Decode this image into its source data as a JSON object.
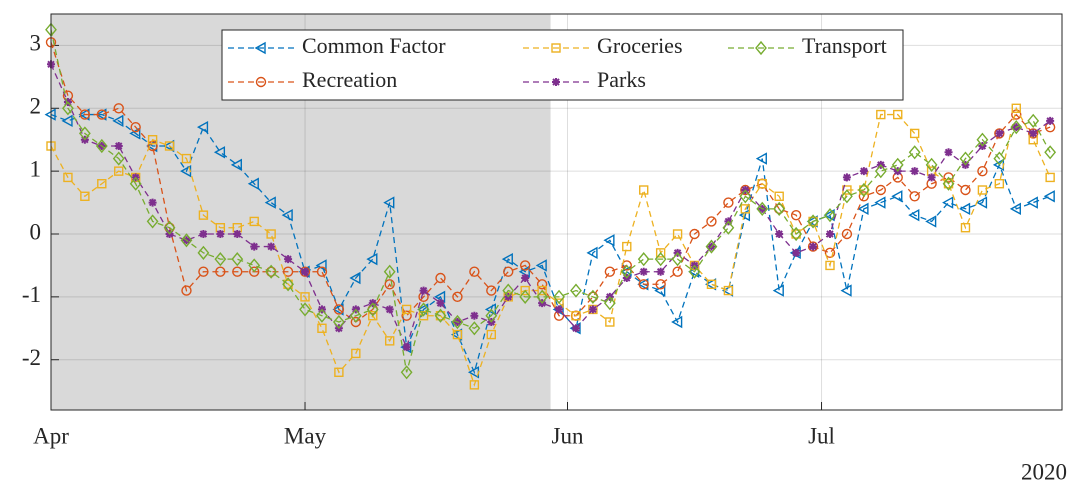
{
  "chart_data": {
    "type": "line",
    "xlabel": "2020",
    "x": [
      0,
      2,
      4,
      6,
      8,
      10,
      12,
      14,
      16,
      18,
      20,
      22,
      24,
      26,
      28,
      30,
      32,
      34,
      36,
      38,
      40,
      42,
      44,
      46,
      48,
      50,
      52,
      54,
      56,
      58,
      60,
      62,
      64,
      66,
      68,
      70,
      72,
      74,
      76,
      78,
      80,
      82,
      84,
      86,
      88,
      90,
      92,
      94,
      96,
      98,
      100,
      102,
      104,
      106,
      108,
      110,
      112,
      114,
      116,
      118
    ],
    "xlim": [
      0,
      119.4
    ],
    "xticks": [
      {
        "value": 0,
        "label": "Apr"
      },
      {
        "value": 30,
        "label": "May"
      },
      {
        "value": 61,
        "label": "Jun"
      },
      {
        "value": 91,
        "label": "Jul"
      }
    ],
    "ylim": [
      -2.8,
      3.5
    ],
    "yticks": [
      -2,
      -1,
      0,
      1,
      2,
      3
    ],
    "grid": true,
    "shaded_xlim": [
      0,
      59
    ],
    "series": [
      {
        "name": "Common Factor",
        "color": "#0072BD",
        "marker": "triangle-left",
        "values": [
          1.9,
          1.8,
          1.9,
          1.9,
          1.8,
          1.6,
          1.4,
          1.4,
          1.0,
          1.7,
          1.3,
          1.1,
          0.8,
          0.5,
          0.3,
          -0.6,
          -0.5,
          -1.2,
          -0.7,
          -0.4,
          0.5,
          -1.8,
          -1.2,
          -1.0,
          -1.6,
          -2.2,
          -1.2,
          -0.4,
          -0.6,
          -0.5,
          -1.2,
          -1.5,
          -0.3,
          -0.1,
          -0.6,
          -0.8,
          -0.9,
          -1.4,
          -0.6,
          -0.8,
          -0.9,
          0.3,
          1.2,
          -0.9,
          -0.3,
          0.2,
          0.3,
          -0.9,
          0.4,
          0.5,
          0.6,
          0.3,
          0.2,
          0.5,
          0.4,
          0.5,
          1.1,
          0.4,
          0.5,
          0.6
        ]
      },
      {
        "name": "Recreation",
        "color": "#D95319",
        "marker": "circle",
        "values": [
          3.05,
          2.2,
          1.9,
          1.9,
          2.0,
          1.7,
          1.4,
          0.1,
          -0.9,
          -0.6,
          -0.6,
          -0.6,
          -0.6,
          -0.6,
          -0.6,
          -0.6,
          -0.6,
          -1.2,
          -1.4,
          -1.2,
          -0.8,
          -1.3,
          -1.0,
          -0.7,
          -1.0,
          -0.6,
          -0.9,
          -0.6,
          -0.5,
          -0.8,
          -1.3,
          -1.3,
          -1.0,
          -0.6,
          -0.5,
          -0.8,
          -0.8,
          -0.6,
          0.0,
          0.2,
          0.5,
          0.7,
          0.8,
          0.4,
          0.3,
          -0.2,
          -0.3,
          0.0,
          0.6,
          0.7,
          0.9,
          0.6,
          0.8,
          0.9,
          0.7,
          1.0,
          1.6,
          1.9,
          1.6,
          1.7
        ]
      },
      {
        "name": "Groceries",
        "color": "#EDB120",
        "marker": "square",
        "values": [
          1.4,
          0.9,
          0.6,
          0.8,
          1.0,
          0.9,
          1.5,
          1.4,
          1.2,
          0.3,
          0.1,
          0.1,
          0.2,
          0.0,
          -0.8,
          -1.0,
          -1.5,
          -2.2,
          -1.9,
          -1.3,
          -1.7,
          -1.2,
          -1.3,
          -1.3,
          -1.6,
          -2.4,
          -1.6,
          -1.0,
          -0.9,
          -0.9,
          -1.1,
          -1.3,
          -1.2,
          -1.4,
          -0.2,
          0.7,
          -0.3,
          0.0,
          -0.5,
          -0.8,
          -0.9,
          0.4,
          0.8,
          0.6,
          0.0,
          0.2,
          -0.5,
          0.7,
          0.7,
          1.9,
          1.9,
          1.6,
          1.0,
          0.8,
          0.1,
          0.7,
          0.8,
          2.0,
          1.5,
          0.9
        ]
      },
      {
        "name": "Parks",
        "color": "#7E2F8E",
        "marker": "asterisk",
        "values": [
          2.7,
          2.1,
          1.5,
          1.4,
          1.4,
          0.9,
          0.5,
          0.0,
          -0.1,
          0.0,
          0.0,
          0.0,
          -0.2,
          -0.2,
          -0.4,
          -0.6,
          -1.2,
          -1.5,
          -1.2,
          -1.1,
          -1.2,
          -1.8,
          -0.9,
          -1.1,
          -1.4,
          -1.3,
          -1.4,
          -1.0,
          -0.7,
          -1.1,
          -1.2,
          -1.5,
          -1.2,
          -1.0,
          -0.7,
          -0.6,
          -0.6,
          -0.3,
          -0.5,
          -0.2,
          0.2,
          0.7,
          0.4,
          0.0,
          -0.3,
          -0.2,
          0.0,
          0.9,
          1.0,
          1.1,
          1.0,
          1.0,
          0.9,
          1.3,
          1.1,
          1.4,
          1.6,
          1.7,
          1.6,
          1.8
        ]
      },
      {
        "name": "Transport",
        "color": "#77AC30",
        "marker": "diamond",
        "values": [
          3.25,
          2.0,
          1.6,
          1.4,
          1.2,
          0.8,
          0.2,
          0.1,
          -0.1,
          -0.3,
          -0.4,
          -0.4,
          -0.5,
          -0.6,
          -0.8,
          -1.2,
          -1.3,
          -1.4,
          -1.3,
          -1.2,
          -0.6,
          -2.2,
          -1.2,
          -1.3,
          -1.4,
          -1.5,
          -1.3,
          -0.9,
          -1.0,
          -1.0,
          -1.0,
          -0.9,
          -1.0,
          -1.1,
          -0.6,
          -0.4,
          -0.4,
          -0.4,
          -0.6,
          -0.2,
          0.1,
          0.6,
          0.4,
          0.4,
          0.0,
          0.2,
          0.3,
          0.6,
          0.7,
          1.0,
          1.1,
          1.3,
          1.1,
          0.8,
          1.2,
          1.5,
          1.2,
          1.7,
          1.8,
          1.3
        ]
      }
    ]
  }
}
